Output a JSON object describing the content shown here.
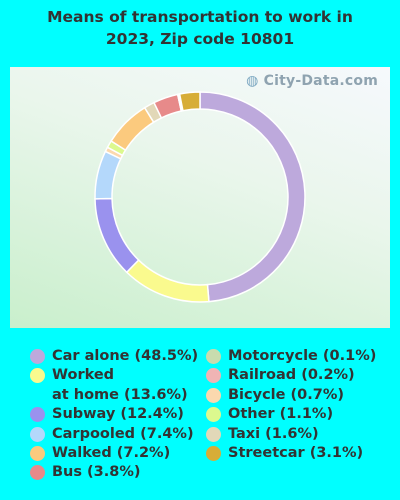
{
  "title_line1": "Means of transportation to work in",
  "title_line2": "2023, Zip code 10801",
  "watermark": "City-Data.com",
  "chart_data": {
    "type": "pie",
    "style": "donut",
    "title": "Means of transportation to work in 2023, Zip code 10801",
    "series": [
      {
        "name": "Car alone",
        "label": "Car alone (48.5%)",
        "value": 48.5,
        "color": "#bda9dc"
      },
      {
        "name": "Worked at home",
        "label": "Worked\nat home (13.6%)",
        "value": 13.6,
        "color": "#fafa8e"
      },
      {
        "name": "Subway",
        "label": "Subway (12.4%)",
        "value": 12.4,
        "color": "#9a92ee"
      },
      {
        "name": "Carpooled",
        "label": "Carpooled (7.4%)",
        "value": 7.4,
        "color": "#b4d8fb"
      },
      {
        "name": "Walked",
        "label": "Walked (7.2%)",
        "value": 7.2,
        "color": "#fbca7e"
      },
      {
        "name": "Bus",
        "label": "Bus (3.8%)",
        "value": 3.8,
        "color": "#e78a8a"
      },
      {
        "name": "Motorcycle",
        "label": "Motorcycle (0.1%)",
        "value": 0.1,
        "color": "#c8dcae"
      },
      {
        "name": "Railroad",
        "label": "Railroad (0.2%)",
        "value": 0.2,
        "color": "#f0b4b4"
      },
      {
        "name": "Bicycle",
        "label": "Bicycle (0.7%)",
        "value": 0.7,
        "color": "#fbd8ae"
      },
      {
        "name": "Other",
        "label": "Other (1.1%)",
        "value": 1.1,
        "color": "#dcf98e"
      },
      {
        "name": "Taxi",
        "label": "Taxi (1.6%)",
        "value": 1.6,
        "color": "#e2d8b8"
      },
      {
        "name": "Streetcar",
        "label": "Streetcar (3.1%)",
        "value": 3.1,
        "color": "#d7ad37"
      }
    ],
    "legend_placement": "bottom"
  }
}
